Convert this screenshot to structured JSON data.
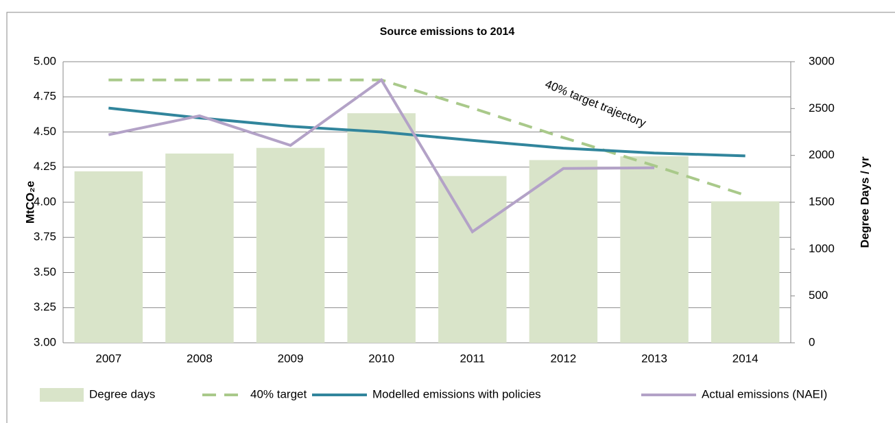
{
  "chart_data": {
    "type": "bar-line",
    "title": "Source emissions to 2014",
    "categories": [
      "2007",
      "2008",
      "2009",
      "2010",
      "2011",
      "2012",
      "2013",
      "2014"
    ],
    "series": [
      {
        "name": "Degree days",
        "type": "bar",
        "axis": "y2",
        "color": "#d9e4c9",
        "values": [
          1830,
          2020,
          2080,
          2450,
          1780,
          1950,
          1990,
          1510
        ]
      },
      {
        "name": "40% target",
        "type": "dashed-line",
        "color": "#a9c98a",
        "values": [
          4.87,
          4.87,
          4.87,
          4.87,
          4.67,
          4.46,
          4.26,
          4.05
        ]
      },
      {
        "name": "Modelled emissions with policies",
        "type": "line",
        "color": "#31859c",
        "values": [
          4.67,
          4.6,
          4.54,
          4.5,
          4.44,
          4.385,
          4.35,
          4.33
        ]
      },
      {
        "name": "Actual emissions (NAEI)",
        "type": "line",
        "color": "#b3a2c7",
        "values": [
          4.48,
          4.615,
          4.405,
          4.87,
          3.79,
          4.24,
          4.245,
          null
        ]
      }
    ],
    "ylabel": "MtCO₂e",
    "y2label": "Degree Days / yr",
    "ylim": [
      3,
      5
    ],
    "yticks": [
      {
        "value": 3,
        "label": "3.00"
      },
      {
        "value": 3.25,
        "label": "3.25"
      },
      {
        "value": 3.5,
        "label": "3.50"
      },
      {
        "value": 3.75,
        "label": "3.75"
      },
      {
        "value": 4,
        "label": "4.00"
      },
      {
        "value": 4.25,
        "label": "4.25"
      },
      {
        "value": 4.5,
        "label": "4.50"
      },
      {
        "value": 4.75,
        "label": "4.75"
      },
      {
        "value": 5,
        "label": "5.00"
      }
    ],
    "y2lim": [
      0,
      3000
    ],
    "y2ticks": [
      0,
      500,
      1000,
      1500,
      2000,
      2500,
      3000
    ],
    "annotation": "40% target trajectory",
    "grid": true,
    "legend": "bottom"
  }
}
